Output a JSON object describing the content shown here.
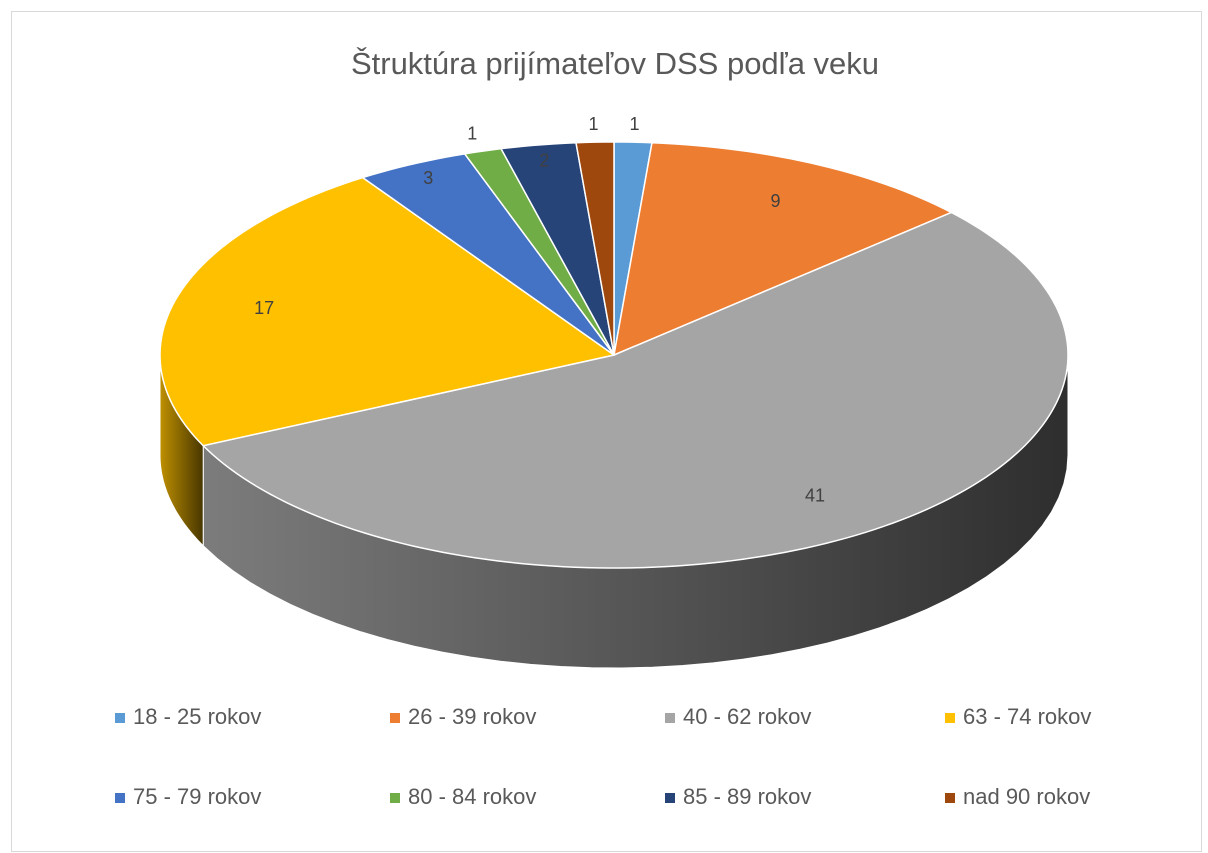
{
  "chart_data": {
    "type": "pie",
    "title": "Štruktúra prijímateľov DSS podľa veku",
    "categories": [
      "18 - 25 rokov",
      "26 - 39 rokov",
      "40 - 62 rokov",
      "63 - 74 rokov",
      "75 - 79 rokov",
      "80 - 84 rokov",
      "85 - 89 rokov",
      "nad 90 rokov"
    ],
    "values": [
      1,
      9,
      41,
      17,
      3,
      1,
      2,
      1
    ],
    "colors": [
      "#5b9bd5",
      "#ed7d31",
      "#a5a5a5",
      "#ffc000",
      "#4472c4",
      "#70ad47",
      "#264478",
      "#9e480e"
    ],
    "legend": "bottom"
  }
}
